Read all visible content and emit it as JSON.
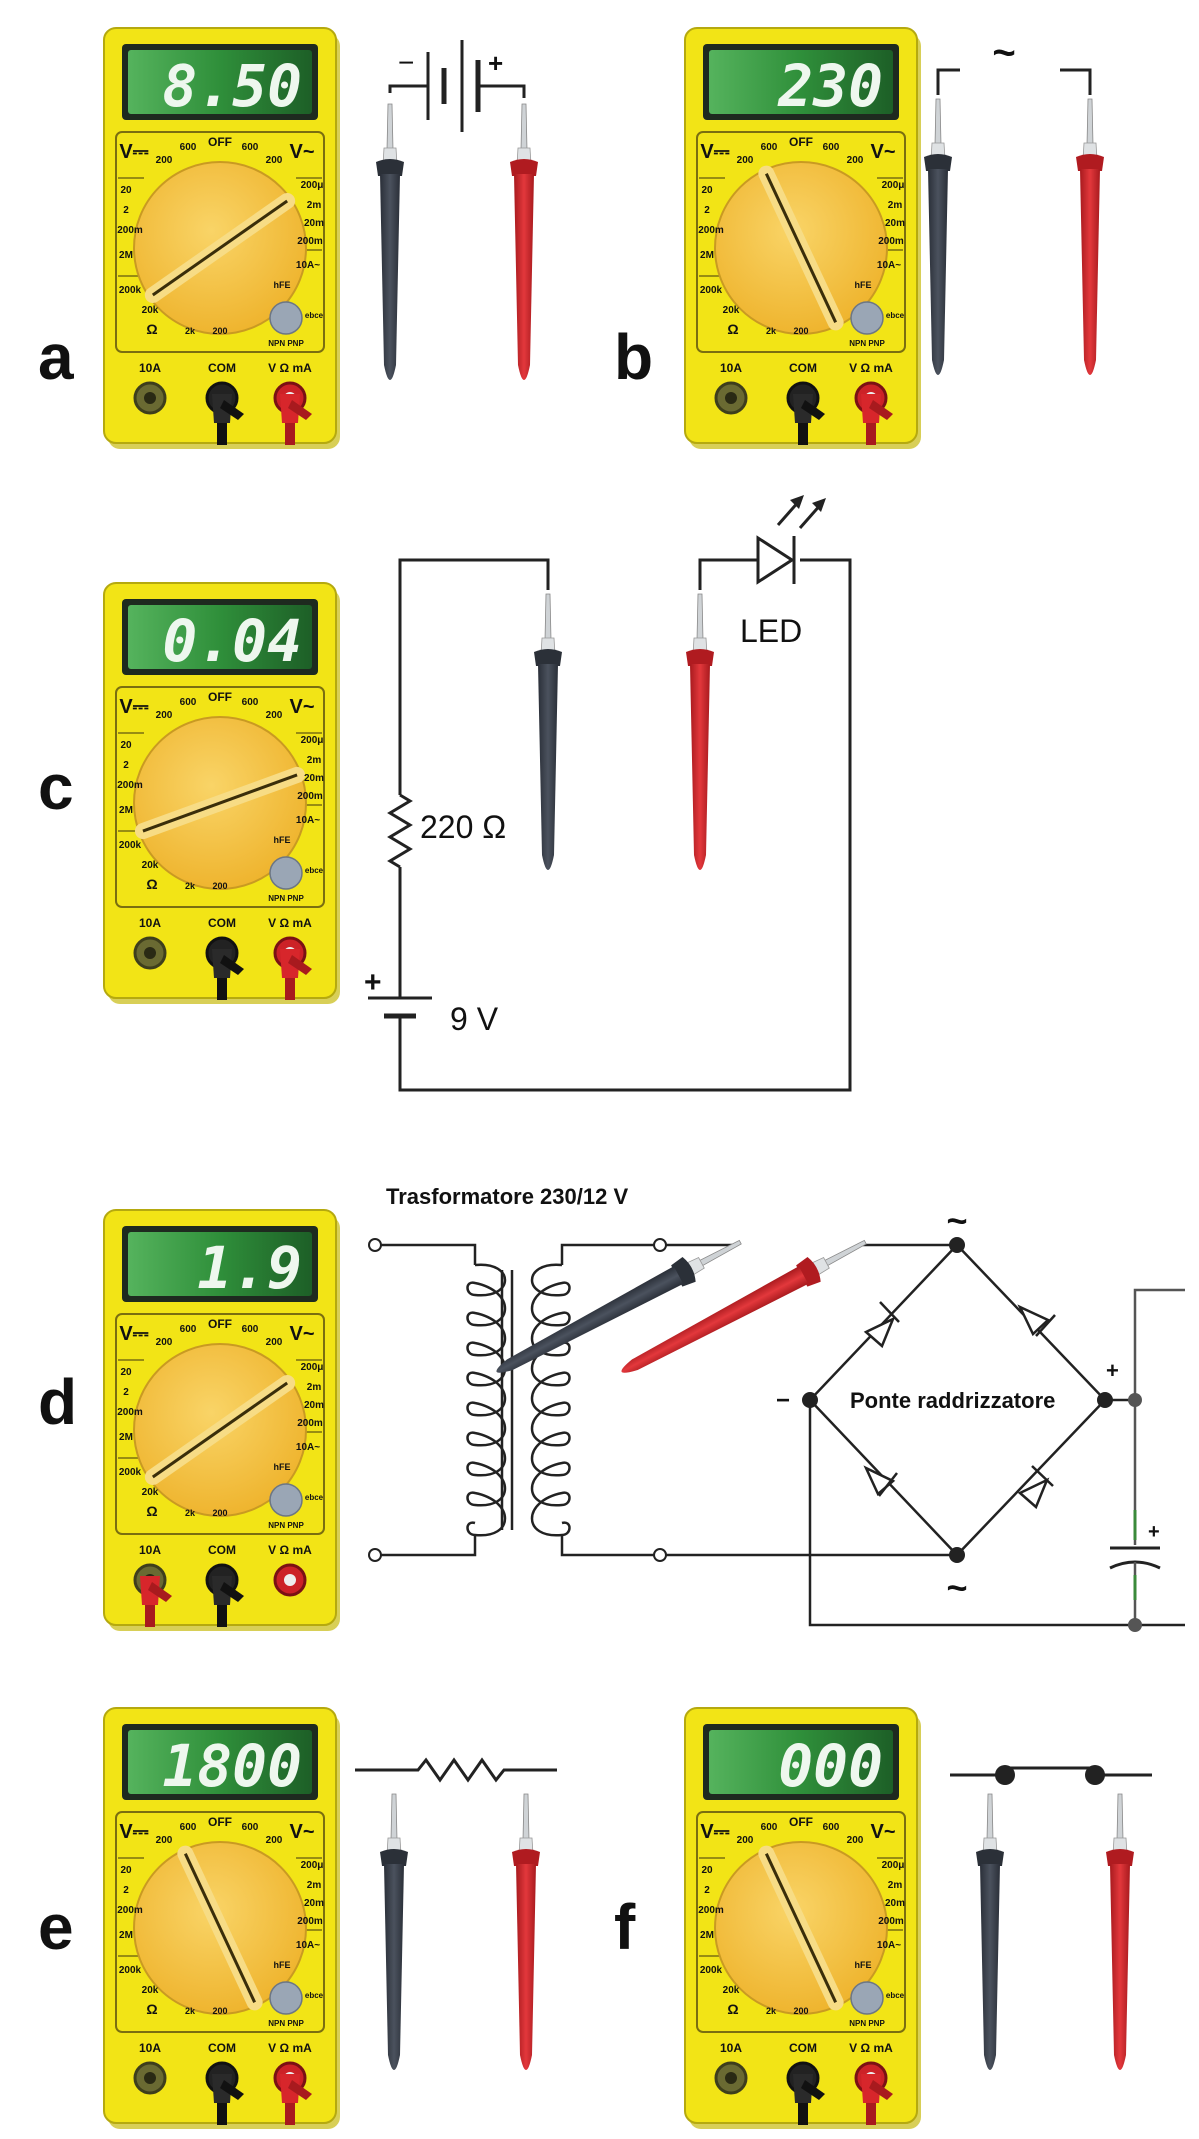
{
  "colors": {
    "meter_body": "#f2e416",
    "meter_frame": "#7a6e10",
    "dial": "#f4c234",
    "lcd": "#2f8f3a",
    "lcd_text": "#eef7ee",
    "probe_black": "#3d434e",
    "probe_red": "#d7262b",
    "wire": "#222222"
  },
  "meter_labels": {
    "vdc": "V⎓",
    "vac": "V~",
    "off": "OFF",
    "l600": "600",
    "l200": "200",
    "l20": "20",
    "l2": "2",
    "l200m": "200m",
    "l2M": "2M",
    "l200k": "200k",
    "l20k": "20k",
    "l2k": "2k",
    "ohm": "Ω",
    "l200u": "200μ",
    "l2m": "2m",
    "l20m": "20m",
    "l10A": "10A~",
    "hfe": "hFE",
    "npnpnp": "NPN PNP",
    "ebce": "ebce",
    "jack_10a": "10A",
    "jack_com": "COM",
    "jack_vma": "V Ω mA"
  },
  "panels": [
    {
      "letter": "a",
      "display": "8.50"
    },
    {
      "letter": "b",
      "display": "230"
    },
    {
      "letter": "c",
      "display": "0.04"
    },
    {
      "letter": "d",
      "display": "1.9"
    },
    {
      "letter": "e",
      "display": "1800"
    },
    {
      "letter": "f",
      "display": "000"
    }
  ],
  "circuits": {
    "b_ac_symbol": "~",
    "c_led_label": "LED",
    "c_resistor_label": "220 Ω",
    "c_battery_label": "9 V",
    "c_plus": "+",
    "a_minus": "−",
    "a_plus": "+",
    "d_transformer_label": "Trasformatore 230/12 V",
    "d_bridge_label": "Ponte raddrizzatore",
    "d_ac_top": "~",
    "d_ac_bottom": "~",
    "d_minus": "−",
    "d_plus": "+",
    "d_cap_plus": "+"
  }
}
